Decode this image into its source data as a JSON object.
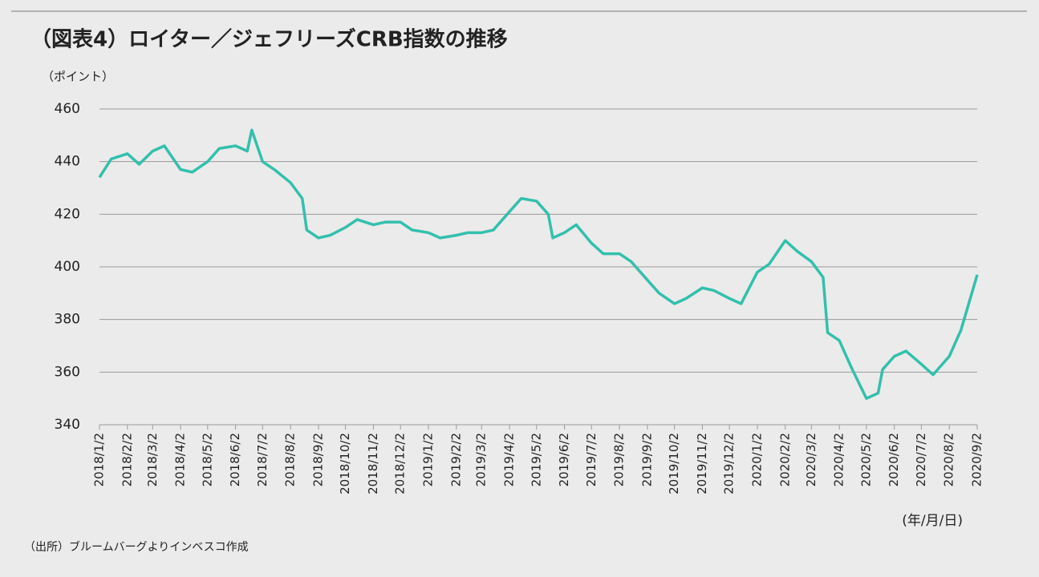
{
  "chart_data": {
    "type": "line",
    "title": "（図表4）ロイター／ジェフリーズCRB指数の推移",
    "y_label": "（ポイント）",
    "x_label": "(年/月/日)",
    "source": "（出所）ブルームバーグよりインベスコ作成",
    "x": [
      "2018/1/2",
      "2018/1/15",
      "2018/2/2",
      "2018/2/15",
      "2018/3/2",
      "2018/3/15",
      "2018/4/2",
      "2018/4/15",
      "2018/5/2",
      "2018/5/15",
      "2018/6/2",
      "2018/6/15",
      "2018/6/20",
      "2018/7/2",
      "2018/7/15",
      "2018/8/2",
      "2018/8/15",
      "2018/8/20",
      "2018/9/2",
      "2018/9/15",
      "2018/10/2",
      "2018/10/15",
      "2018/11/2",
      "2018/11/15",
      "2018/12/2",
      "2018/12/15",
      "2019/1/2",
      "2019/1/15",
      "2019/2/2",
      "2019/2/15",
      "2019/3/2",
      "2019/3/15",
      "2019/4/2",
      "2019/4/15",
      "2019/5/2",
      "2019/5/15",
      "2019/5/20",
      "2019/6/2",
      "2019/6/15",
      "2019/7/2",
      "2019/7/15",
      "2019/8/2",
      "2019/8/15",
      "2019/9/2",
      "2019/9/15",
      "2019/10/2",
      "2019/10/15",
      "2019/11/2",
      "2019/11/15",
      "2019/12/2",
      "2019/12/15",
      "2020/1/2",
      "2020/1/15",
      "2020/2/2",
      "2020/2/15",
      "2020/3/2",
      "2020/3/15",
      "2020/3/20",
      "2020/4/2",
      "2020/4/15",
      "2020/5/2",
      "2020/5/15",
      "2020/5/20",
      "2020/6/2",
      "2020/6/15",
      "2020/7/2",
      "2020/7/15",
      "2020/8/2",
      "2020/8/15",
      "2020/9/2"
    ],
    "series": [
      {
        "name": "CRB",
        "color": "#33c0ad",
        "values": [
          434,
          441,
          443,
          439,
          444,
          446,
          437,
          436,
          440,
          445,
          446,
          444,
          452,
          440,
          437,
          432,
          426,
          414,
          411,
          412,
          415,
          418,
          416,
          417,
          417,
          414,
          413,
          411,
          412,
          413,
          413,
          414,
          421,
          426,
          425,
          420,
          411,
          413,
          416,
          409,
          405,
          405,
          402,
          395,
          390,
          386,
          388,
          392,
          391,
          388,
          386,
          398,
          401,
          410,
          406,
          402,
          396,
          375,
          372,
          362,
          350,
          352,
          361,
          366,
          368,
          363,
          359,
          366,
          376,
          397
        ]
      }
    ],
    "xlim": [
      "2018/1/2",
      "2020/9/2"
    ],
    "xticks": [
      "2018/1/2",
      "2018/2/2",
      "2018/3/2",
      "2018/4/2",
      "2018/5/2",
      "2018/6/2",
      "2018/7/2",
      "2018/8/2",
      "2018/9/2",
      "2018/10/2",
      "2018/11/2",
      "2018/12/2",
      "2019/1/2",
      "2019/2/2",
      "2019/3/2",
      "2019/4/2",
      "2019/5/2",
      "2019/6/2",
      "2019/7/2",
      "2019/8/2",
      "2019/9/2",
      "2019/10/2",
      "2019/11/2",
      "2019/12/2",
      "2020/1/2",
      "2020/2/2",
      "2020/3/2",
      "2020/4/2",
      "2020/5/2",
      "2020/6/2",
      "2020/7/2",
      "2020/8/2",
      "2020/9/2"
    ],
    "ylim": [
      340,
      460
    ],
    "yticks": [
      340,
      360,
      380,
      400,
      420,
      440,
      460
    ],
    "grid": true
  }
}
